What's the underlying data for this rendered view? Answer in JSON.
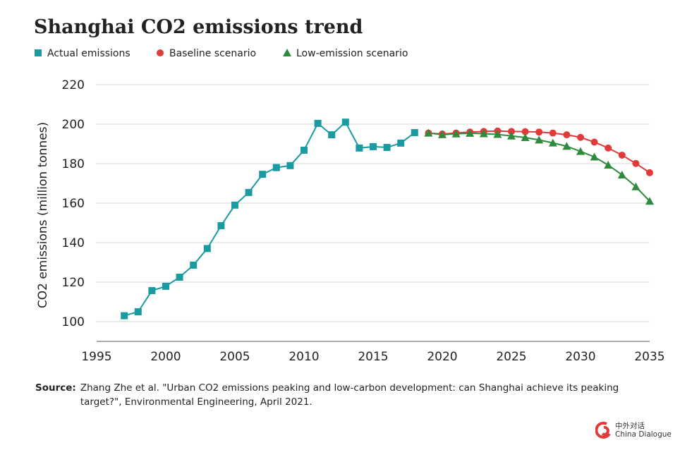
{
  "chart_data": {
    "type": "line",
    "title": "Shanghai CO2 emissions trend",
    "y_label": "CO2 emissions (million tonnes)",
    "x": [
      1997,
      1998,
      1999,
      2000,
      2001,
      2002,
      2003,
      2004,
      2005,
      2006,
      2007,
      2008,
      2009,
      2010,
      2011,
      2012,
      2013,
      2014,
      2015,
      2016,
      2017,
      2018,
      2019,
      2020,
      2021,
      2022,
      2023,
      2024,
      2025,
      2026,
      2027,
      2028,
      2029,
      2030,
      2031,
      2032,
      2033,
      2034,
      2035
    ],
    "series": [
      {
        "name": "Actual emissions",
        "color": "#1a9ba1",
        "marker": "square",
        "values": [
          103,
          105,
          115.7,
          117.9,
          122.5,
          128.6,
          137,
          148.6,
          159,
          165.4,
          174.6,
          178,
          179,
          186.8,
          200.4,
          194.6,
          201,
          187.9,
          188.6,
          188.2,
          190.4,
          195.7,
          null,
          null,
          null,
          null,
          null,
          null,
          null,
          null,
          null,
          null,
          null,
          null,
          null,
          null,
          null,
          null,
          null
        ]
      },
      {
        "name": "Baseline scenario",
        "color": "#e03a3a",
        "marker": "circle",
        "values": [
          null,
          null,
          null,
          null,
          null,
          null,
          null,
          null,
          null,
          null,
          null,
          null,
          null,
          null,
          null,
          null,
          null,
          null,
          null,
          null,
          null,
          null,
          195.5,
          195,
          195.5,
          196,
          196.3,
          196.5,
          196.3,
          196.2,
          196,
          195.5,
          194.6,
          193.3,
          190.9,
          187.9,
          184.3,
          180.1,
          175.4
        ]
      },
      {
        "name": "Low-emission scenario",
        "color": "#2e8b3e",
        "marker": "triangle",
        "values": [
          null,
          null,
          null,
          null,
          null,
          null,
          null,
          null,
          null,
          null,
          null,
          null,
          null,
          null,
          null,
          null,
          null,
          null,
          null,
          null,
          null,
          null,
          195.5,
          194.7,
          195.1,
          195.4,
          195.2,
          194.8,
          194,
          193.2,
          192,
          190.5,
          188.8,
          186.2,
          183.4,
          179.3,
          174.3,
          168.3,
          161
        ]
      }
    ],
    "xlim": [
      1995,
      2035
    ],
    "xticks": [
      1995,
      2000,
      2005,
      2010,
      2015,
      2020,
      2025,
      2030,
      2035
    ],
    "ylim": [
      90,
      220
    ],
    "yticks": [
      100,
      120,
      140,
      160,
      180,
      200,
      220
    ],
    "grid": true,
    "legend": "top-left"
  },
  "source": {
    "label": "Source:",
    "text": "Zhang Zhe et al. \"Urban CO2 emissions peaking and low-carbon development: can Shanghai achieve its peaking target?\", Environmental Engineering, April 2021."
  },
  "logo": {
    "chinese": "中外对话",
    "english": "China Dialogue"
  }
}
